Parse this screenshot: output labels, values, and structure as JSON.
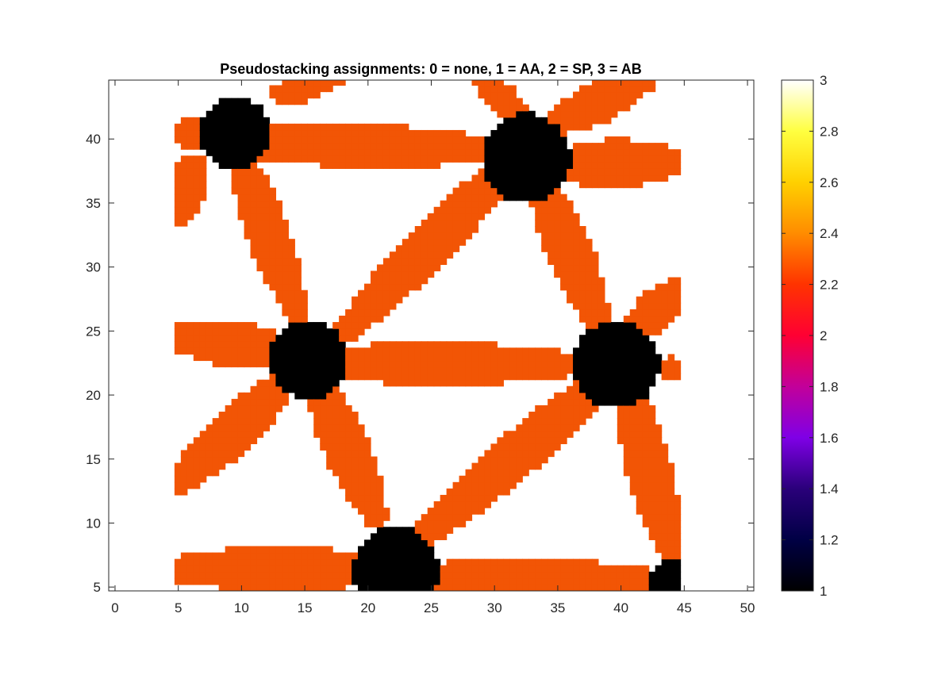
{
  "chart_data": {
    "type": "heatmap",
    "title": "Pseudostacking assignments: 0 = none, 1 = AA, 2 = SP, 3 = AB",
    "xlabel": "",
    "ylabel": "",
    "xlim": [
      -0.5,
      50.5
    ],
    "ylim": [
      4.7,
      44.6
    ],
    "x_ticks": [
      0,
      5,
      10,
      15,
      20,
      25,
      30,
      35,
      40,
      45,
      50
    ],
    "y_ticks": [
      5,
      10,
      15,
      20,
      25,
      30,
      35,
      40
    ],
    "data_extent": {
      "x": [
        4.7,
        44.6
      ],
      "y": [
        4.7,
        44.6
      ]
    },
    "background_value": 3,
    "colorbar": {
      "colormap": "hot-like (black to white)",
      "range": [
        1,
        3
      ],
      "ticks": [
        1,
        1.2,
        1.4,
        1.6,
        1.8,
        2,
        2.2,
        2.4,
        2.6,
        2.8,
        3
      ],
      "colors": [
        "#000000",
        "#000044",
        "#2a007a",
        "#7f00e6",
        "#c2009a",
        "#ff0033",
        "#ff3300",
        "#ff8c00",
        "#ffd000",
        "#ffff40",
        "#ffffff"
      ]
    },
    "value_colors": {
      "1": "#000000",
      "2": "#f25505",
      "3": "#ffffff"
    },
    "aa_regions": [
      {
        "value": 1,
        "center": [
          9.5,
          40.5
        ],
        "radius": 2.8
      },
      {
        "value": 1,
        "center": [
          32.5,
          38.5
        ],
        "radius": 3.5
      },
      {
        "value": 1,
        "center": [
          15.3,
          22.8
        ],
        "radius": 3.1
      },
      {
        "value": 1,
        "center": [
          39.6,
          22.4
        ],
        "radius": 3.4
      },
      {
        "value": 1,
        "center": [
          22.2,
          6.4
        ],
        "radius": 3.4
      },
      {
        "value": 1,
        "center": [
          44.6,
          4.7
        ],
        "radius": 2.6
      }
    ],
    "sp_regions": [
      {
        "value": 2,
        "from": [
          11.5,
          39.7
        ],
        "to": [
          30.0,
          39.2
        ],
        "half_width": 1.7
      },
      {
        "value": 2,
        "from": [
          13.0,
          43.5
        ],
        "to": [
          17.5,
          44.6
        ],
        "half_width": 1.0
      },
      {
        "value": 2,
        "from": [
          4.9,
          40.5
        ],
        "to": [
          7.2,
          40.5
        ],
        "half_width": 1.2
      },
      {
        "value": 2,
        "from": [
          6.0,
          37.6
        ],
        "to": [
          4.9,
          34.0
        ],
        "half_width": 1.7
      },
      {
        "value": 2,
        "from": [
          10.4,
          37.2
        ],
        "to": [
          14.3,
          26.6
        ],
        "half_width": 1.7
      },
      {
        "value": 2,
        "from": [
          29.7,
          36.6
        ],
        "to": [
          18.2,
          25.0
        ],
        "half_width": 1.8
      },
      {
        "value": 2,
        "from": [
          34.2,
          35.4
        ],
        "to": [
          38.3,
          25.5
        ],
        "half_width": 1.8
      },
      {
        "value": 2,
        "from": [
          36.0,
          38.0
        ],
        "to": [
          44.6,
          38.2
        ],
        "half_width": 1.9
      },
      {
        "value": 2,
        "from": [
          35.5,
          41.6
        ],
        "to": [
          42.0,
          44.6
        ],
        "half_width": 1.6
      },
      {
        "value": 2,
        "from": [
          31.7,
          42.2
        ],
        "to": [
          29.0,
          44.6
        ],
        "half_width": 1.2
      },
      {
        "value": 2,
        "from": [
          12.1,
          23.7
        ],
        "to": [
          4.9,
          24.5
        ],
        "half_width": 1.8
      },
      {
        "value": 2,
        "from": [
          18.3,
          22.5
        ],
        "to": [
          36.0,
          22.4
        ],
        "half_width": 1.7
      },
      {
        "value": 2,
        "from": [
          41.4,
          25.3
        ],
        "to": [
          44.6,
          28.5
        ],
        "half_width": 1.6
      },
      {
        "value": 2,
        "from": [
          12.5,
          20.2
        ],
        "to": [
          4.9,
          13.0
        ],
        "half_width": 1.8
      },
      {
        "value": 2,
        "from": [
          16.5,
          19.8
        ],
        "to": [
          20.6,
          10.6
        ],
        "half_width": 1.8
      },
      {
        "value": 2,
        "from": [
          37.0,
          19.8
        ],
        "to": [
          24.4,
          9.0
        ],
        "half_width": 1.8
      },
      {
        "value": 2,
        "from": [
          41.0,
          19.0
        ],
        "to": [
          43.8,
          8.0
        ],
        "half_width": 1.8
      },
      {
        "value": 2,
        "from": [
          18.7,
          6.4
        ],
        "to": [
          4.9,
          6.4
        ],
        "half_width": 1.8
      },
      {
        "value": 2,
        "from": [
          25.7,
          5.7
        ],
        "to": [
          41.5,
          5.7
        ],
        "half_width": 1.6
      },
      {
        "value": 2,
        "from": [
          43.6,
          22.0
        ],
        "to": [
          44.6,
          22.0
        ],
        "half_width": 1.0
      }
    ]
  }
}
